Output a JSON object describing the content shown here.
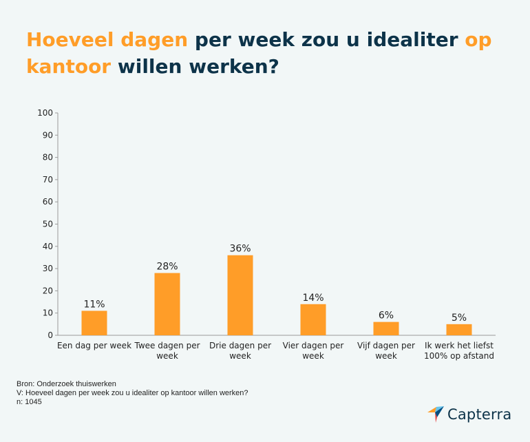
{
  "title": {
    "part1": "Hoeveel dagen",
    "part2": " per week zou u idealiter ",
    "part3": "op kantoor",
    "part4": " willen werken?"
  },
  "source": {
    "line1": "Bron: Onderzoek thuiswerken",
    "line2": "V: Hoeveel dagen per week zou u idealiter op kantoor willen werken?",
    "line3": "n: 1045"
  },
  "logo": {
    "text": "Capterra",
    "icon": "capterra-logo-icon"
  },
  "colors": {
    "bar": "#ff9d28",
    "title_dark": "#0d3349",
    "title_accent": "#ff9d28",
    "background": "#f2f7f7"
  },
  "chart_data": {
    "type": "bar",
    "title": "Hoeveel dagen per week zou u idealiter op kantoor willen werken?",
    "categories": [
      [
        "Een dag per week"
      ],
      [
        "Twee dagen per",
        "week"
      ],
      [
        "Drie dagen per",
        "week"
      ],
      [
        "Vier dagen per",
        "week"
      ],
      [
        "Vijf dagen per",
        "week"
      ],
      [
        "Ik werk het liefst",
        "100% op afstand"
      ]
    ],
    "values": [
      11,
      28,
      36,
      14,
      6,
      5
    ],
    "data_labels": [
      "11%",
      "28%",
      "36%",
      "14%",
      "6%",
      "5%"
    ],
    "yticks": [
      0,
      10,
      20,
      30,
      40,
      50,
      60,
      70,
      80,
      90,
      100
    ],
    "ylim": [
      0,
      100
    ],
    "xlabel": "",
    "ylabel": "",
    "grid": false,
    "legend": "none"
  }
}
